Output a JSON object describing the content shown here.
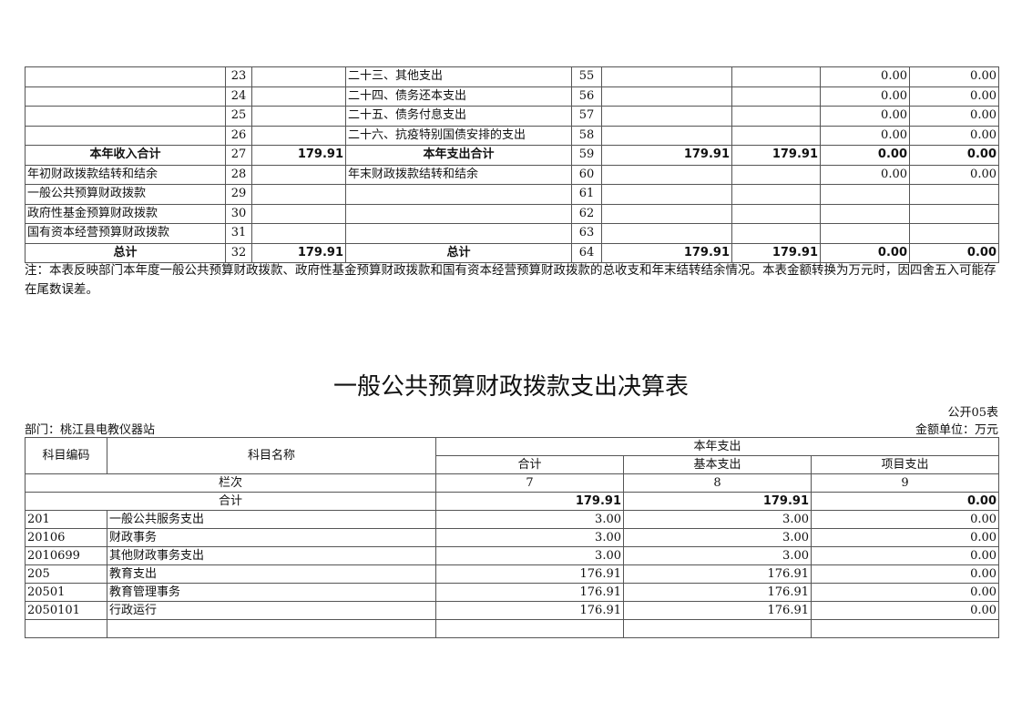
{
  "top_table": {
    "rows": [
      {
        "in_name": "",
        "in_no": "23",
        "in_amt": "",
        "out_name": "二十三、其他支出",
        "out_no": "55",
        "c1": "",
        "c2": "",
        "c3": "0.00",
        "c4": "0.00",
        "bold": false
      },
      {
        "in_name": "",
        "in_no": "24",
        "in_amt": "",
        "out_name": "二十四、债务还本支出",
        "out_no": "56",
        "c1": "",
        "c2": "",
        "c3": "0.00",
        "c4": "0.00",
        "bold": false
      },
      {
        "in_name": "",
        "in_no": "25",
        "in_amt": "",
        "out_name": "二十五、债务付息支出",
        "out_no": "57",
        "c1": "",
        "c2": "",
        "c3": "0.00",
        "c4": "0.00",
        "bold": false
      },
      {
        "in_name": "",
        "in_no": "26",
        "in_amt": "",
        "out_name": "二十六、抗疫特别国债安排的支出",
        "out_no": "58",
        "c1": "",
        "c2": "",
        "c3": "0.00",
        "c4": "0.00",
        "bold": false
      },
      {
        "in_name": "本年收入合计",
        "in_no": "27",
        "in_amt": "179.91",
        "out_name": "本年支出合计",
        "out_no": "59",
        "c1": "179.91",
        "c2": "179.91",
        "c3": "0.00",
        "c4": "0.00",
        "bold": true
      },
      {
        "in_name": "年初财政拨款结转和结余",
        "in_no": "28",
        "in_amt": "",
        "out_name": "年末财政拨款结转和结余",
        "out_no": "60",
        "c1": "",
        "c2": "",
        "c3": "0.00",
        "c4": "0.00",
        "bold": false
      },
      {
        "in_name": "一般公共预算财政拨款",
        "in_no": "29",
        "in_amt": "",
        "out_name": "",
        "out_no": "61",
        "c1": "",
        "c2": "",
        "c3": "",
        "c4": "",
        "bold": false
      },
      {
        "in_name": "政府性基金预算财政拨款",
        "in_no": "30",
        "in_amt": "",
        "out_name": "",
        "out_no": "62",
        "c1": "",
        "c2": "",
        "c3": "",
        "c4": "",
        "bold": false
      },
      {
        "in_name": "国有资本经营预算财政拨款",
        "in_no": "31",
        "in_amt": "",
        "out_name": "",
        "out_no": "63",
        "c1": "",
        "c2": "",
        "c3": "",
        "c4": "",
        "bold": false
      },
      {
        "in_name": "总计",
        "in_no": "32",
        "in_amt": "179.91",
        "out_name": "总计",
        "out_no": "64",
        "c1": "179.91",
        "c2": "179.91",
        "c3": "0.00",
        "c4": "0.00",
        "bold": true
      }
    ],
    "note": "注：本表反映部门本年度一般公共预算财政拨款、政府性基金预算财政拨款和国有资本经营预算财政拨款的总收支和年末结转结余情况。本表金额转换为万元时，因四舍五入可能存在尾数误差。"
  },
  "report": {
    "title": "一般公共预算财政拨款支出决算表",
    "form_no": "公开05表",
    "department": "部门：桃江县电教仪器站",
    "unit": "金额单位：万元",
    "headers": {
      "code": "科目编码",
      "name": "科目名称",
      "group": "本年支出",
      "total": "合计",
      "basic": "基本支出",
      "project": "项目支出",
      "lanci": "栏次",
      "col7": "7",
      "col8": "8",
      "col9": "9"
    },
    "total_row": {
      "label": "合计",
      "total": "179.91",
      "basic": "179.91",
      "project": "0.00"
    },
    "rows": [
      {
        "code": "201",
        "name": "一般公共服务支出",
        "total": "3.00",
        "basic": "3.00",
        "project": "0.00"
      },
      {
        "code": "20106",
        "name": "财政事务",
        "total": "3.00",
        "basic": "3.00",
        "project": "0.00"
      },
      {
        "code": "2010699",
        "name": "其他财政事务支出",
        "total": "3.00",
        "basic": "3.00",
        "project": "0.00"
      },
      {
        "code": "205",
        "name": "教育支出",
        "total": "176.91",
        "basic": "176.91",
        "project": "0.00"
      },
      {
        "code": "20501",
        "name": "教育管理事务",
        "total": "176.91",
        "basic": "176.91",
        "project": "0.00"
      },
      {
        "code": "2050101",
        "name": "行政运行",
        "total": "176.91",
        "basic": "176.91",
        "project": "0.00"
      }
    ]
  }
}
